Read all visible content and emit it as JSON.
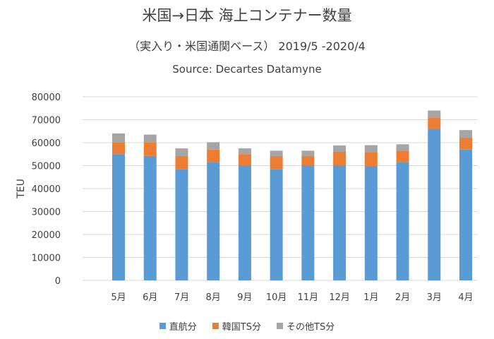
{
  "title": "米国→日本 海上コンテナー数量",
  "subtitle": "（実入り・米国通関ベース） 2019/5 -2020/4",
  "source": "Source: Decartes Datamyne",
  "colors": {
    "direct": "#5B9BD5",
    "korea": "#ED7D31",
    "other": "#A5A5A5",
    "grid": "#D9D9D9",
    "text": "#404040"
  },
  "chart_data": {
    "type": "bar",
    "stacked": true,
    "ylabel": "TEU",
    "xlabel": "",
    "ylim": [
      0,
      80000
    ],
    "yticks": [
      0,
      10000,
      20000,
      30000,
      40000,
      50000,
      60000,
      70000,
      80000
    ],
    "grid": true,
    "legend_position": "bottom",
    "categories": [
      "5月",
      "6月",
      "7月",
      "8月",
      "9月",
      "10月",
      "11月",
      "12月",
      "1月",
      "2月",
      "3月",
      "4月"
    ],
    "series": [
      {
        "name": "直航分",
        "color_key": "direct",
        "values": [
          55000,
          54200,
          48500,
          51500,
          50000,
          48500,
          50000,
          50000,
          49700,
          51500,
          66000,
          57000
        ]
      },
      {
        "name": "韓国TS分",
        "color_key": "korea",
        "values": [
          5000,
          5800,
          5500,
          5500,
          5000,
          5500,
          4000,
          6000,
          6000,
          5000,
          5000,
          5000
        ]
      },
      {
        "name": "その他TS分",
        "color_key": "other",
        "values": [
          4000,
          3500,
          3500,
          3200,
          2500,
          2500,
          2500,
          2800,
          3200,
          2800,
          3000,
          3500
        ]
      }
    ]
  }
}
